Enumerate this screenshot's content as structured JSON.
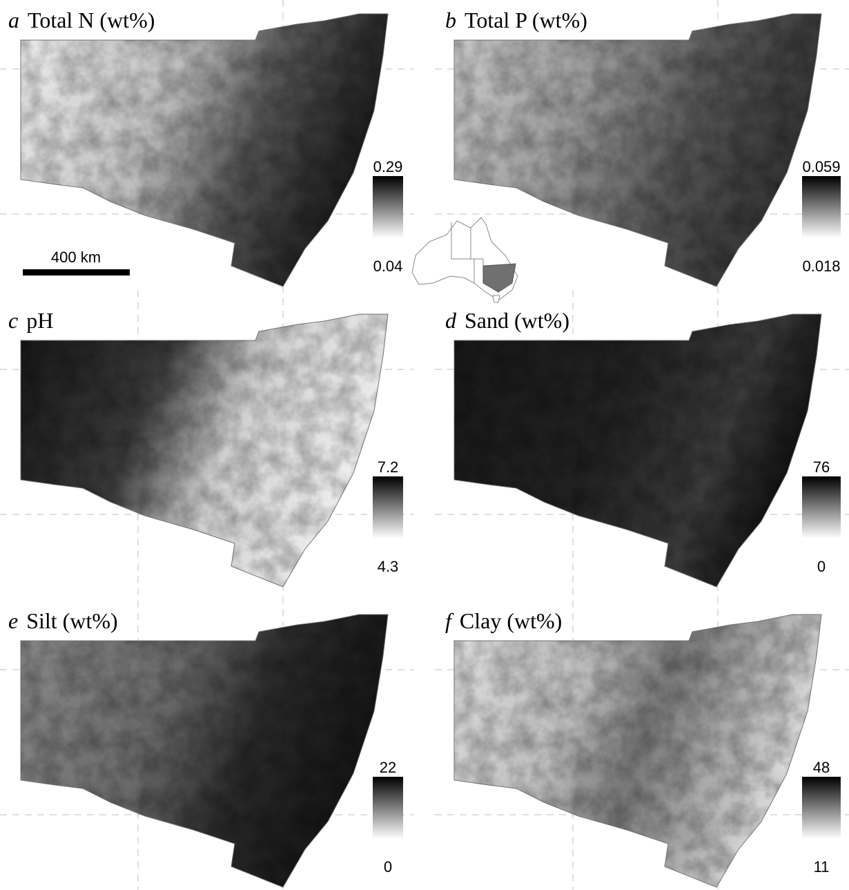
{
  "panels": [
    {
      "letter": "a",
      "title": "Total N (wt%)",
      "legend_max": 0.29,
      "legend_min": 0.04
    },
    {
      "letter": "b",
      "title": "Total P (wt%)",
      "legend_max": 0.059,
      "legend_min": 0.018
    },
    {
      "letter": "c",
      "title": "pH",
      "legend_max": 7.2,
      "legend_min": 4.3
    },
    {
      "letter": "d",
      "title": "Sand (wt%)",
      "legend_max": 76,
      "legend_min": 0
    },
    {
      "letter": "e",
      "title": "Silt (wt%)",
      "legend_max": 22,
      "legend_min": 0
    },
    {
      "letter": "f",
      "title": "Clay (wt%)",
      "legend_max": 48,
      "legend_min": 11
    }
  ],
  "scale_bar": "400 km"
}
